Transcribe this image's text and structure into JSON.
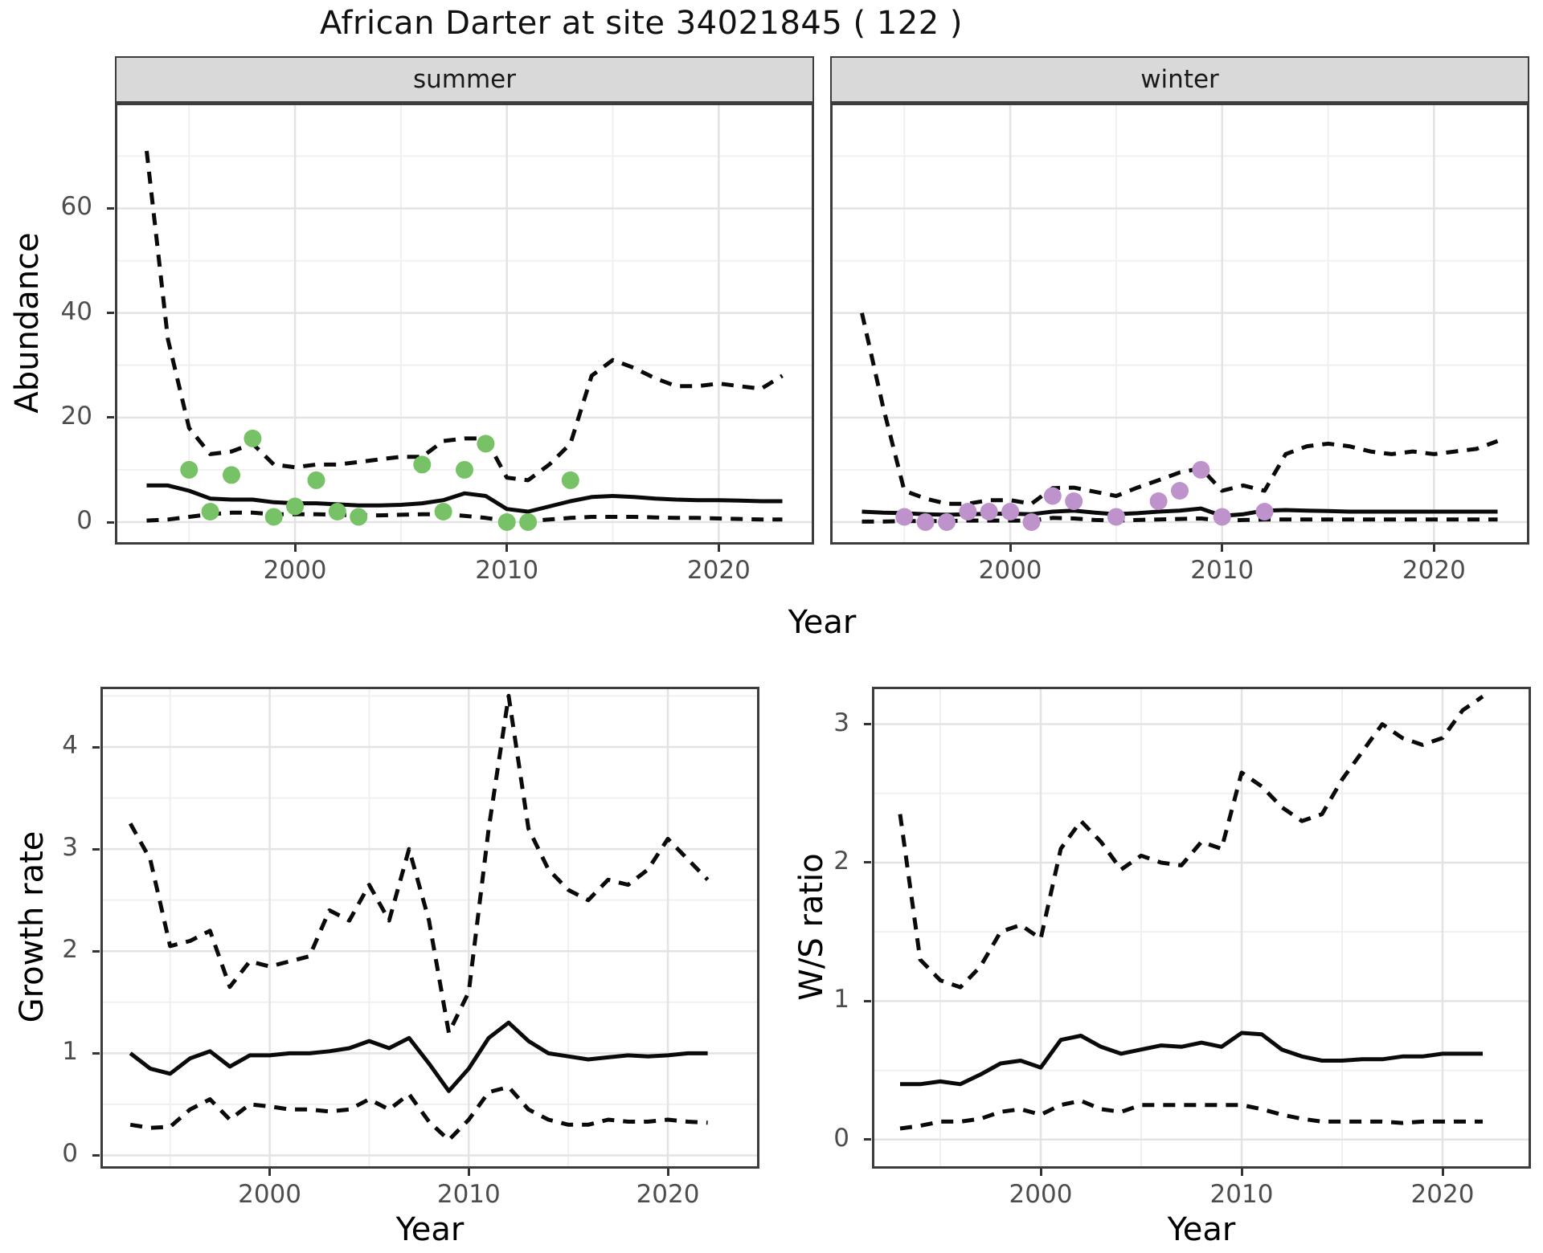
{
  "title": "African Darter at site 34021845 ( 122 )",
  "facets": {
    "summer_label": "summer",
    "winter_label": "winter"
  },
  "axis_titles": {
    "top_x": "Year",
    "top_y": "Abundance",
    "growth_x": "Year",
    "growth_y": "Growth rate",
    "ws_x": "Year",
    "ws_y": "W/S ratio"
  },
  "colors": {
    "summer_points": "#77C266",
    "winter_points": "#BE93CC",
    "line": "#0a0a0a",
    "grid_major": "#E3E3E3",
    "grid_minor": "#F0F0F0",
    "strip_bg": "#D9D9D9",
    "axis_text": "#4d4d4d",
    "panel_border": "#3c3c3c"
  },
  "chart_data": [
    {
      "id": "summer",
      "type": "line",
      "title": "summer",
      "xlabel": "Year",
      "ylabel": "Abundance",
      "x": [
        1993,
        1994,
        1995,
        1996,
        1997,
        1998,
        1999,
        2000,
        2001,
        2002,
        2003,
        2004,
        2005,
        2006,
        2007,
        2008,
        2009,
        2010,
        2011,
        2012,
        2013,
        2014,
        2015,
        2016,
        2017,
        2018,
        2019,
        2020,
        2021,
        2022,
        2023
      ],
      "series": [
        {
          "name": "upper-ci",
          "style": "dashed",
          "values": [
            71,
            35,
            18,
            13,
            13.5,
            15,
            11,
            10.5,
            11,
            11,
            11.5,
            12,
            12.5,
            12.5,
            15.5,
            16,
            16,
            8.5,
            8,
            11,
            15,
            28,
            31,
            29.5,
            27.5,
            26,
            26,
            26.5,
            26,
            25.5,
            28
          ]
        },
        {
          "name": "fit",
          "style": "solid",
          "values": [
            7,
            7,
            6,
            4.5,
            4.3,
            4.3,
            3.8,
            3.6,
            3.6,
            3.4,
            3.2,
            3.2,
            3.3,
            3.6,
            4.2,
            5.5,
            5,
            2.5,
            2,
            3,
            4,
            4.8,
            5,
            4.8,
            4.5,
            4.3,
            4.2,
            4.2,
            4.1,
            4,
            4
          ]
        },
        {
          "name": "lower-ci",
          "style": "dashed",
          "values": [
            0.3,
            0.5,
            1,
            1.5,
            1.8,
            1.8,
            1.5,
            1.5,
            1.5,
            1.4,
            1.3,
            1.3,
            1.4,
            1.5,
            1.5,
            1.2,
            0.8,
            0.2,
            0.2,
            0.5,
            0.8,
            1,
            1,
            1,
            0.9,
            0.8,
            0.8,
            0.7,
            0.6,
            0.5,
            0.5
          ]
        }
      ],
      "points": {
        "name": "observed-abundance-summer",
        "color_key": "summer_points",
        "x": [
          1995,
          1996,
          1997,
          1998,
          1999,
          2000,
          2001,
          2002,
          2003,
          2006,
          2007,
          2008,
          2009,
          2010,
          2011,
          2013
        ],
        "y": [
          10,
          2,
          9,
          16,
          1,
          3,
          8,
          2,
          1,
          11,
          2,
          10,
          15,
          0,
          0,
          8
        ]
      },
      "xlim": [
        1991.5,
        2024.5
      ],
      "ylim": [
        -4.3,
        80.2
      ],
      "xticks": [
        2000,
        2010,
        2020
      ],
      "xticks_minor": [
        1995,
        2005,
        2015
      ],
      "yticks": [
        0,
        20,
        40,
        60
      ],
      "yticks_minor": [
        10,
        30,
        50,
        70
      ],
      "grid": true
    },
    {
      "id": "winter",
      "type": "line",
      "title": "winter",
      "xlabel": "Year",
      "ylabel": "Abundance",
      "x": [
        1993,
        1994,
        1995,
        1996,
        1997,
        1998,
        1999,
        2000,
        2001,
        2002,
        2003,
        2004,
        2005,
        2006,
        2007,
        2008,
        2009,
        2010,
        2011,
        2012,
        2013,
        2014,
        2015,
        2016,
        2017,
        2018,
        2019,
        2020,
        2021,
        2022,
        2023
      ],
      "series": [
        {
          "name": "upper-ci",
          "style": "dashed",
          "values": [
            40,
            22,
            6,
            4.5,
            3.5,
            3.5,
            4.2,
            4.2,
            3.5,
            6.5,
            6.6,
            5.8,
            5,
            6.6,
            8,
            9.5,
            10.3,
            6,
            7,
            6,
            13,
            14.5,
            15,
            14.5,
            13.5,
            13,
            13.5,
            13,
            13.5,
            14,
            15.5
          ]
        },
        {
          "name": "fit",
          "style": "solid",
          "values": [
            2,
            1.8,
            1.7,
            1.5,
            1.4,
            1.5,
            1.6,
            1.6,
            1.5,
            2,
            2.2,
            1.8,
            1.5,
            1.7,
            2,
            2.2,
            2.6,
            1.2,
            1.5,
            2.2,
            2.3,
            2.2,
            2.1,
            2,
            2,
            2,
            2,
            2,
            2,
            2,
            2
          ]
        },
        {
          "name": "lower-ci",
          "style": "dashed",
          "values": [
            0.1,
            0.1,
            0.2,
            0.2,
            0.2,
            0.3,
            0.3,
            0.3,
            0.3,
            0.8,
            0.7,
            0.4,
            0.3,
            0.4,
            0.5,
            0.6,
            0.7,
            0.3,
            0.4,
            0.5,
            0.5,
            0.5,
            0.5,
            0.5,
            0.5,
            0.5,
            0.5,
            0.5,
            0.5,
            0.5,
            0.5
          ]
        }
      ],
      "points": {
        "name": "observed-abundance-winter",
        "color_key": "winter_points",
        "x": [
          1995,
          1996,
          1997,
          1998,
          1999,
          2000,
          2001,
          2002,
          2003,
          2005,
          2007,
          2008,
          2009,
          2010,
          2012
        ],
        "y": [
          1,
          0,
          0,
          2,
          2,
          2,
          0,
          5,
          4,
          1,
          4,
          6,
          10,
          1,
          2
        ]
      },
      "xlim": [
        1991.5,
        2024.5
      ],
      "ylim": [
        -4.3,
        80.2
      ],
      "xticks": [
        2000,
        2010,
        2020
      ],
      "xticks_minor": [
        1995,
        2005,
        2015
      ],
      "yticks": [
        0,
        20,
        40,
        60
      ],
      "yticks_minor": [
        10,
        30,
        50,
        70
      ],
      "grid": true
    },
    {
      "id": "growth",
      "type": "line",
      "title": "",
      "xlabel": "Year",
      "ylabel": "Growth rate",
      "x": [
        1993,
        1994,
        1995,
        1996,
        1997,
        1998,
        1999,
        2000,
        2001,
        2002,
        2003,
        2004,
        2005,
        2006,
        2007,
        2008,
        2009,
        2010,
        2011,
        2012,
        2013,
        2014,
        2015,
        2016,
        2017,
        2018,
        2019,
        2020,
        2021,
        2022
      ],
      "series": [
        {
          "name": "upper-ci",
          "style": "dashed",
          "values": [
            3.25,
            2.9,
            2.05,
            2.1,
            2.2,
            1.65,
            1.9,
            1.85,
            1.9,
            1.95,
            2.4,
            2.3,
            2.65,
            2.3,
            3.0,
            2.3,
            1.2,
            1.6,
            3.2,
            4.5,
            3.2,
            2.8,
            2.6,
            2.5,
            2.7,
            2.65,
            2.8,
            3.1,
            2.9,
            2.7
          ]
        },
        {
          "name": "fit",
          "style": "solid",
          "values": [
            1.0,
            0.85,
            0.8,
            0.95,
            1.02,
            0.87,
            0.98,
            0.98,
            1.0,
            1.0,
            1.02,
            1.05,
            1.12,
            1.05,
            1.15,
            0.9,
            0.63,
            0.85,
            1.15,
            1.3,
            1.12,
            1.0,
            0.97,
            0.94,
            0.96,
            0.98,
            0.97,
            0.98,
            1.0,
            1.0
          ]
        },
        {
          "name": "lower-ci",
          "style": "dashed",
          "values": [
            0.3,
            0.27,
            0.28,
            0.45,
            0.55,
            0.35,
            0.5,
            0.48,
            0.45,
            0.45,
            0.43,
            0.45,
            0.55,
            0.45,
            0.6,
            0.33,
            0.15,
            0.35,
            0.62,
            0.67,
            0.45,
            0.35,
            0.3,
            0.3,
            0.35,
            0.33,
            0.33,
            0.35,
            0.33,
            0.32
          ]
        }
      ],
      "points": null,
      "xlim": [
        1991.5,
        2024.6
      ],
      "ylim": [
        -0.13,
        4.59
      ],
      "xticks": [
        2000,
        2010,
        2020
      ],
      "xticks_minor": [
        1995,
        2005,
        2015
      ],
      "yticks": [
        0,
        1,
        2,
        3,
        4
      ],
      "yticks_minor": [
        0.5,
        1.5,
        2.5,
        3.5,
        4.5
      ],
      "grid": true
    },
    {
      "id": "ws",
      "type": "line",
      "title": "",
      "xlabel": "Year",
      "ylabel": "W/S ratio",
      "x": [
        1993,
        1994,
        1995,
        1996,
        1997,
        1998,
        1999,
        2000,
        2001,
        2002,
        2003,
        2004,
        2005,
        2006,
        2007,
        2008,
        2009,
        2010,
        2011,
        2012,
        2013,
        2014,
        2015,
        2016,
        2017,
        2018,
        2019,
        2020,
        2021,
        2022
      ],
      "series": [
        {
          "name": "upper-ci",
          "style": "dashed",
          "values": [
            2.35,
            1.3,
            1.15,
            1.1,
            1.25,
            1.5,
            1.55,
            1.45,
            2.1,
            2.3,
            2.15,
            1.95,
            2.05,
            2.0,
            1.98,
            2.15,
            2.1,
            2.65,
            2.55,
            2.4,
            2.3,
            2.35,
            2.6,
            2.8,
            3.0,
            2.9,
            2.85,
            2.9,
            3.1,
            3.2
          ]
        },
        {
          "name": "fit",
          "style": "solid",
          "values": [
            0.4,
            0.4,
            0.42,
            0.4,
            0.47,
            0.55,
            0.57,
            0.52,
            0.72,
            0.75,
            0.67,
            0.62,
            0.65,
            0.68,
            0.67,
            0.7,
            0.67,
            0.77,
            0.76,
            0.65,
            0.6,
            0.57,
            0.57,
            0.58,
            0.58,
            0.6,
            0.6,
            0.62,
            0.62,
            0.62
          ]
        },
        {
          "name": "lower-ci",
          "style": "dashed",
          "values": [
            0.08,
            0.1,
            0.13,
            0.13,
            0.15,
            0.2,
            0.22,
            0.18,
            0.25,
            0.28,
            0.22,
            0.2,
            0.25,
            0.25,
            0.25,
            0.25,
            0.25,
            0.25,
            0.22,
            0.18,
            0.15,
            0.13,
            0.13,
            0.13,
            0.13,
            0.12,
            0.13,
            0.13,
            0.13,
            0.13
          ]
        }
      ],
      "points": null,
      "xlim": [
        1991.6,
        2024.4
      ],
      "ylim": [
        -0.21,
        3.27
      ],
      "xticks": [
        2000,
        2010,
        2020
      ],
      "xticks_minor": [
        1995,
        2005,
        2015
      ],
      "yticks": [
        0,
        1,
        2,
        3
      ],
      "yticks_minor": [
        0.5,
        1.5,
        2.5
      ],
      "grid": true
    }
  ]
}
